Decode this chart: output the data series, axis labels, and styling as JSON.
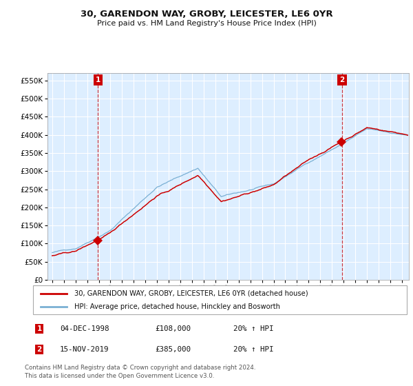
{
  "title": "30, GARENDON WAY, GROBY, LEICESTER, LE6 0YR",
  "subtitle": "Price paid vs. HM Land Registry's House Price Index (HPI)",
  "sale1_date_label": "04-DEC-1998",
  "sale1_price": 108000,
  "sale1_pct": "20% ↑ HPI",
  "sale2_date_label": "15-NOV-2019",
  "sale2_price": 385000,
  "sale2_pct": "20% ↑ HPI",
  "sale1_x": 1998.92,
  "sale2_x": 2019.87,
  "legend_line1": "30, GARENDON WAY, GROBY, LEICESTER, LE6 0YR (detached house)",
  "legend_line2": "HPI: Average price, detached house, Hinckley and Bosworth",
  "footer1": "Contains HM Land Registry data © Crown copyright and database right 2024.",
  "footer2": "This data is licensed under the Open Government Licence v3.0.",
  "line_red": "#cc0000",
  "line_blue": "#7ab0d4",
  "plot_bg": "#ddeeff",
  "fig_bg": "#ffffff",
  "grid_color": "#ffffff",
  "vline_color": "#cc0000",
  "anno_box_color": "#cc0000",
  "ylim": [
    0,
    570000
  ],
  "yticks": [
    0,
    50000,
    100000,
    150000,
    200000,
    250000,
    300000,
    350000,
    400000,
    450000,
    500000,
    550000
  ],
  "xstart": 1994.6,
  "xend": 2025.6
}
